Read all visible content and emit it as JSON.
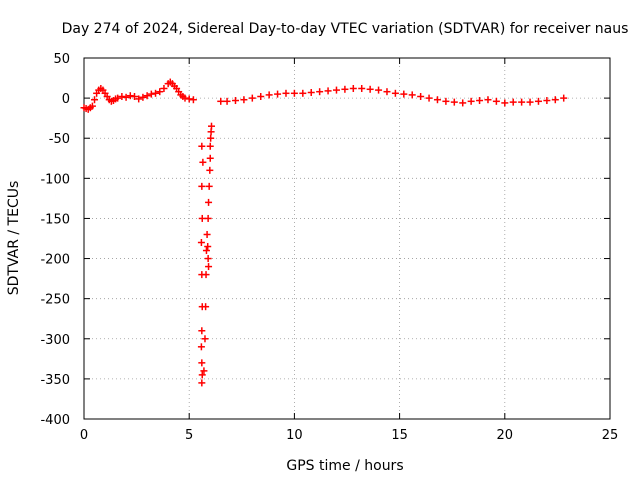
{
  "chart_data": {
    "type": "scatter",
    "title": "Day 274 of 2024, Sidereal Day-to-day VTEC variation (SDTVAR) for receiver naus",
    "xlabel": "GPS time / hours",
    "ylabel": "SDTVAR / TECUs",
    "xlim": [
      0,
      25
    ],
    "ylim": [
      -400,
      50
    ],
    "xticks": [
      0,
      5,
      10,
      15,
      20,
      25
    ],
    "yticks": [
      50,
      0,
      -50,
      -100,
      -150,
      -200,
      -250,
      -300,
      -350,
      -400
    ],
    "grid": true,
    "marker": "+",
    "color": "#ff0000",
    "series": [
      {
        "name": "SDTVAR",
        "points": [
          [
            0.0,
            -12
          ],
          [
            0.1,
            -13
          ],
          [
            0.2,
            -14
          ],
          [
            0.3,
            -12
          ],
          [
            0.4,
            -10
          ],
          [
            0.5,
            -2
          ],
          [
            0.6,
            6
          ],
          [
            0.7,
            10
          ],
          [
            0.8,
            12
          ],
          [
            0.9,
            10
          ],
          [
            1.0,
            6
          ],
          [
            1.1,
            2
          ],
          [
            1.2,
            -2
          ],
          [
            1.3,
            -4
          ],
          [
            1.4,
            -3
          ],
          [
            1.5,
            -1
          ],
          [
            1.6,
            0
          ],
          [
            1.8,
            2
          ],
          [
            2.0,
            1
          ],
          [
            2.2,
            3
          ],
          [
            2.4,
            2
          ],
          [
            2.6,
            -1
          ],
          [
            2.8,
            1
          ],
          [
            3.0,
            3
          ],
          [
            3.2,
            5
          ],
          [
            3.4,
            6
          ],
          [
            3.6,
            8
          ],
          [
            3.8,
            12
          ],
          [
            4.0,
            18
          ],
          [
            4.1,
            20
          ],
          [
            4.2,
            18
          ],
          [
            4.3,
            15
          ],
          [
            4.4,
            12
          ],
          [
            4.5,
            8
          ],
          [
            4.6,
            4
          ],
          [
            4.7,
            2
          ],
          [
            4.8,
            0
          ],
          [
            5.0,
            -1
          ],
          [
            5.2,
            -2
          ],
          [
            5.6,
            -60
          ],
          [
            5.65,
            -80
          ],
          [
            5.6,
            -110
          ],
          [
            5.62,
            -150
          ],
          [
            5.58,
            -180
          ],
          [
            5.6,
            -220
          ],
          [
            5.62,
            -260
          ],
          [
            5.6,
            -290
          ],
          [
            5.58,
            -310
          ],
          [
            5.6,
            -330
          ],
          [
            5.62,
            -345
          ],
          [
            5.6,
            -355
          ],
          [
            5.7,
            -340
          ],
          [
            5.75,
            -300
          ],
          [
            5.78,
            -260
          ],
          [
            5.8,
            -220
          ],
          [
            5.82,
            -190
          ],
          [
            5.85,
            -170
          ],
          [
            5.9,
            -150
          ],
          [
            5.92,
            -130
          ],
          [
            5.95,
            -110
          ],
          [
            5.98,
            -90
          ],
          [
            6.0,
            -75
          ],
          [
            6.0,
            -60
          ],
          [
            6.02,
            -50
          ],
          [
            6.04,
            -42
          ],
          [
            6.06,
            -35
          ],
          [
            5.88,
            -185
          ],
          [
            5.9,
            -200
          ],
          [
            5.92,
            -210
          ],
          [
            6.5,
            -4
          ],
          [
            6.8,
            -4
          ],
          [
            7.2,
            -3
          ],
          [
            7.6,
            -2
          ],
          [
            8.0,
            0
          ],
          [
            8.4,
            2
          ],
          [
            8.8,
            4
          ],
          [
            9.2,
            5
          ],
          [
            9.6,
            6
          ],
          [
            10.0,
            6
          ],
          [
            10.4,
            6
          ],
          [
            10.8,
            7
          ],
          [
            11.2,
            8
          ],
          [
            11.6,
            9
          ],
          [
            12.0,
            10
          ],
          [
            12.4,
            11
          ],
          [
            12.8,
            12
          ],
          [
            13.2,
            12
          ],
          [
            13.6,
            11
          ],
          [
            14.0,
            10
          ],
          [
            14.4,
            8
          ],
          [
            14.8,
            6
          ],
          [
            15.2,
            5
          ],
          [
            15.6,
            4
          ],
          [
            16.0,
            2
          ],
          [
            16.4,
            0
          ],
          [
            16.8,
            -2
          ],
          [
            17.2,
            -4
          ],
          [
            17.6,
            -5
          ],
          [
            18.0,
            -6
          ],
          [
            18.4,
            -4
          ],
          [
            18.8,
            -3
          ],
          [
            19.2,
            -2
          ],
          [
            19.6,
            -4
          ],
          [
            20.0,
            -6
          ],
          [
            20.4,
            -5
          ],
          [
            20.8,
            -5
          ],
          [
            21.2,
            -5
          ],
          [
            21.6,
            -4
          ],
          [
            22.0,
            -3
          ],
          [
            22.4,
            -2
          ],
          [
            22.8,
            0
          ]
        ]
      }
    ]
  }
}
